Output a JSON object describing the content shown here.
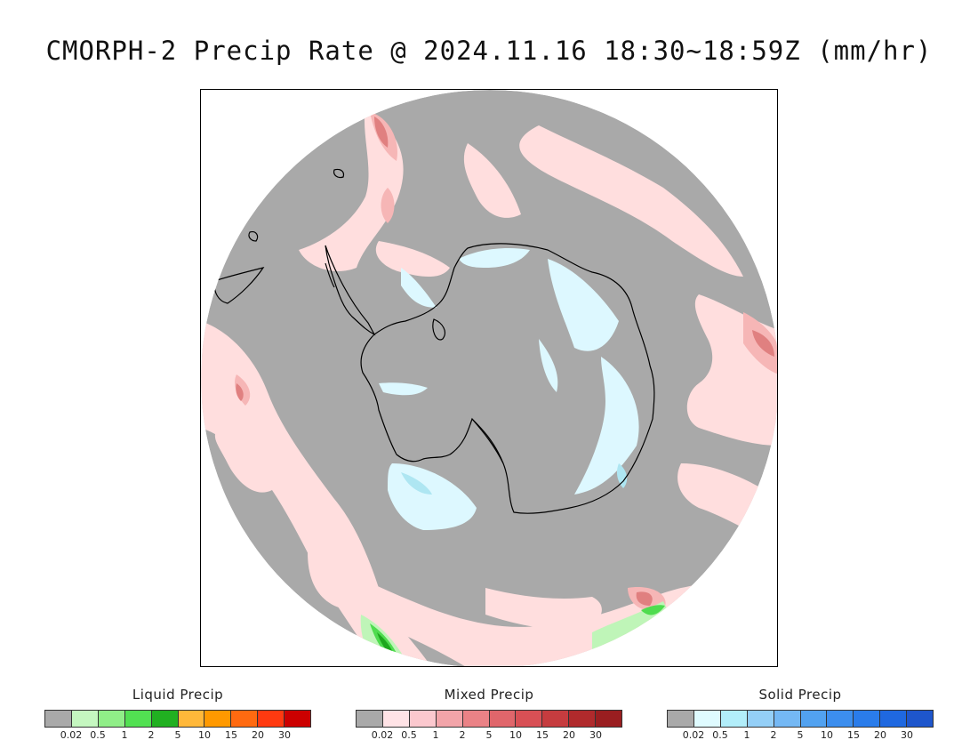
{
  "title": "CMORPH-2 Precip Rate @ 2024.11.16 18:30~18:59Z (mm/hr)",
  "map": {
    "colors": {
      "background": "#a9a9a9",
      "mixed_light": "#ffdede",
      "mixed_mid": "#f6b6b6",
      "mixed_heavy": "#e08080",
      "solid_light": "#ddf8ff",
      "solid_mid": "#aee6f2",
      "liquid_light": "#bff5b8",
      "liquid_mid": "#4fdc4f",
      "liquid_heavy": "#1ea71e",
      "coast": "#000000"
    }
  },
  "legends": [
    {
      "title": "Liquid Precip",
      "colors": [
        "#a9a9a9",
        "#c5f7c0",
        "#90ee88",
        "#52e052",
        "#21b021",
        "#ffb83a",
        "#ff9900",
        "#ff6a10",
        "#ff3a10",
        "#cc0000"
      ],
      "ticks": [
        "0.02",
        "0.5",
        "1",
        "2",
        "5",
        "10",
        "15",
        "20",
        "30"
      ]
    },
    {
      "title": "Mixed Precip",
      "colors": [
        "#a9a9a9",
        "#ffe3e6",
        "#fbc8ce",
        "#f2a4a9",
        "#ea8286",
        "#e0666b",
        "#d85055",
        "#c63c3f",
        "#b02a2c",
        "#9a1e20"
      ],
      "ticks": [
        "0.02",
        "0.5",
        "1",
        "2",
        "5",
        "10",
        "15",
        "20",
        "30"
      ]
    },
    {
      "title": "Solid Precip",
      "colors": [
        "#a9a9a9",
        "#dffbff",
        "#b2eefa",
        "#94cff7",
        "#74b8f4",
        "#52a2f0",
        "#3c8eee",
        "#2a7cea",
        "#1f68e0",
        "#1e56cc"
      ],
      "ticks": [
        "0.02",
        "0.5",
        "1",
        "2",
        "5",
        "10",
        "15",
        "20",
        "30"
      ]
    }
  ]
}
